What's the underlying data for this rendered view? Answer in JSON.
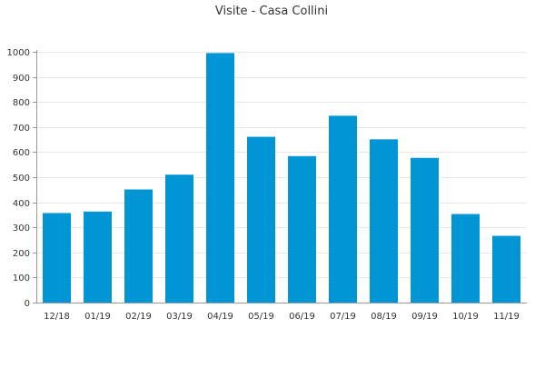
{
  "chart_data": {
    "type": "bar",
    "title": "Visite - Casa Collini",
    "xlabel": "",
    "ylabel": "",
    "categories": [
      "12/18",
      "01/19",
      "02/19",
      "03/19",
      "04/19",
      "05/19",
      "06/19",
      "07/19",
      "08/19",
      "09/19",
      "10/19",
      "11/19"
    ],
    "values": [
      357,
      363,
      451,
      510,
      995,
      661,
      584,
      745,
      651,
      577,
      353,
      266
    ],
    "ylim": [
      0,
      1000
    ],
    "yticks": [
      0,
      100,
      200,
      300,
      400,
      500,
      600,
      700,
      800,
      900,
      1000
    ],
    "grid": true,
    "legend": "none",
    "colors": {
      "bar": "#0095d5",
      "grid": "#e6e6e6",
      "axis": "#999999",
      "text": "#333333"
    }
  }
}
